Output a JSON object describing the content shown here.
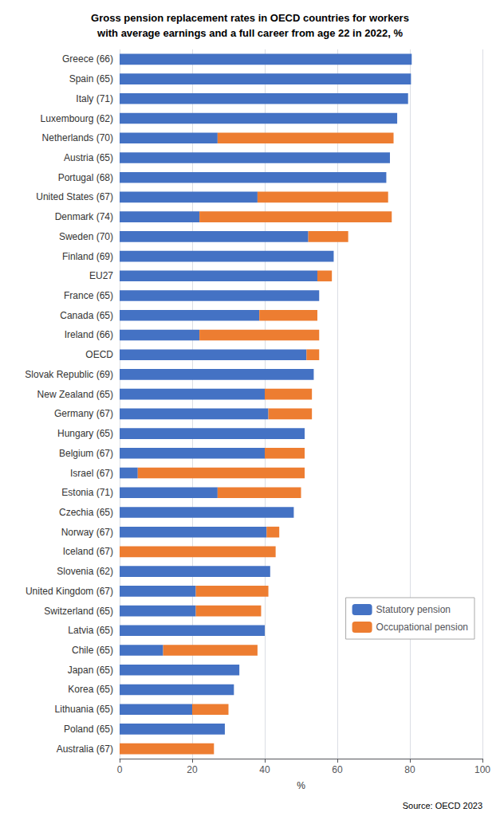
{
  "chart_data": {
    "type": "bar",
    "orientation": "horizontal",
    "stacked": true,
    "title": "Gross pension replacement rates in OECD countries for workers\nwith average earnings and a full career from age 22 in 2022, %",
    "categories": [
      "Greece (66)",
      "Spain (65)",
      "Italy (71)",
      "Luxembourg (62)",
      "Netherlands (70)",
      "Austria (65)",
      "Portugal (68)",
      "United States (67)",
      "Denmark (74)",
      "Sweden (70)",
      "Finland (69)",
      "EU27",
      "France (65)",
      "Canada (65)",
      "Ireland (66)",
      "OECD",
      "Slovak Republic (69)",
      "New Zealand (65)",
      "Germany (67)",
      "Hungary (65)",
      "Belgium (67)",
      "Israel (67)",
      "Estonia (71)",
      "Czechia (65)",
      "Norway (67)",
      "Iceland (67)",
      "Slovenia (62)",
      "United Kingdom (67)",
      "Switzerland (65)",
      "Latvia (65)",
      "Chile (65)",
      "Japan (65)",
      "Korea (65)",
      "Lithuania (65)",
      "Poland (65)",
      "Australia (67)"
    ],
    "series": [
      {
        "name": "Statutory pension",
        "color": "#4472c4",
        "values": [
          80.5,
          80.3,
          79.5,
          76.5,
          27.0,
          74.5,
          73.5,
          38.0,
          22.0,
          52.0,
          59.0,
          54.5,
          55.0,
          38.5,
          22.0,
          51.5,
          53.5,
          40.0,
          41.0,
          51.0,
          40.0,
          5.0,
          27.0,
          48.0,
          40.5,
          0.0,
          41.5,
          21.0,
          21.0,
          40.0,
          12.0,
          33.0,
          31.5,
          20.0,
          29.0,
          0.0
        ]
      },
      {
        "name": "Occupational pension",
        "color": "#ed7d31",
        "values": [
          0.0,
          0.0,
          0.0,
          0.0,
          48.5,
          0.0,
          0.0,
          36.0,
          53.0,
          11.0,
          0.0,
          4.0,
          0.0,
          16.0,
          33.0,
          3.5,
          0.0,
          13.0,
          12.0,
          0.0,
          11.0,
          46.0,
          23.0,
          0.0,
          3.5,
          43.0,
          0.0,
          20.0,
          18.0,
          0.0,
          26.0,
          0.0,
          0.0,
          10.0,
          0.0,
          26.0
        ]
      }
    ],
    "xlabel": "%",
    "xlim": [
      0,
      100
    ],
    "xticks": [
      0,
      20,
      40,
      60,
      80,
      100
    ],
    "grid": true,
    "legend": "lower right",
    "annotations": [
      "Source: OECD 2023"
    ]
  }
}
